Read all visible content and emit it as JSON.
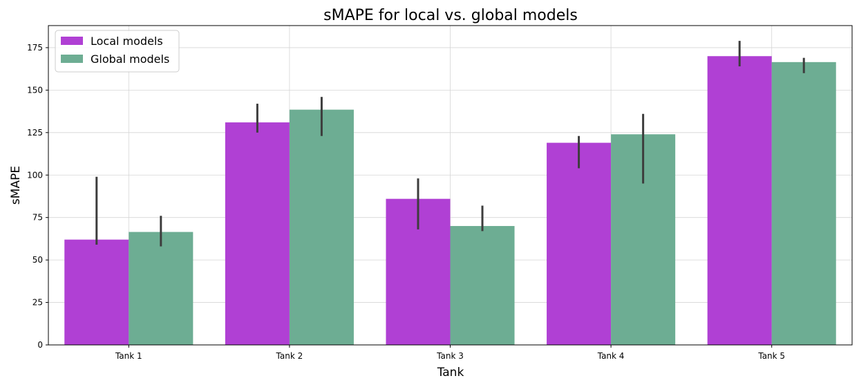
{
  "chart_data": {
    "type": "bar",
    "title": "sMAPE for local vs. global models",
    "xlabel": "Tank",
    "ylabel": "sMAPE",
    "categories": [
      "Tank 1",
      "Tank 2",
      "Tank 3",
      "Tank 4",
      "Tank 5"
    ],
    "ylim": [
      0,
      188
    ],
    "yticks": [
      0,
      25,
      50,
      75,
      100,
      125,
      150,
      175
    ],
    "grid": true,
    "legend_position": "top-left",
    "series": [
      {
        "name": "Local models",
        "color": "#b040d4",
        "values": [
          62,
          131,
          86,
          119,
          170
        ],
        "error_low": [
          59,
          125,
          68,
          104,
          164
        ],
        "error_high": [
          99,
          142,
          98,
          123,
          179
        ]
      },
      {
        "name": "Global models",
        "color": "#6dad93",
        "values": [
          66.5,
          138.5,
          70,
          124,
          166.5
        ],
        "error_low": [
          58,
          123,
          67,
          95,
          160
        ],
        "error_high": [
          76,
          146,
          82,
          136,
          169
        ]
      }
    ]
  }
}
